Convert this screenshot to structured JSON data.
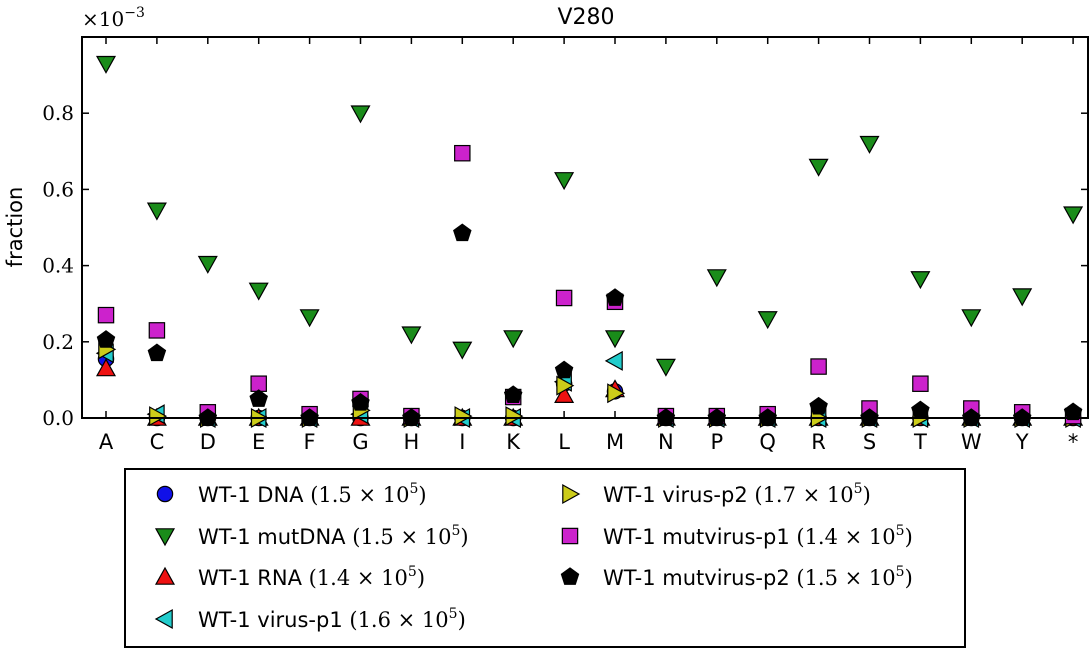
{
  "chart_data": {
    "type": "scatter",
    "title": "V280",
    "ylabel": "fraction",
    "y_scale_label": "×10",
    "y_scale_exp": "−3",
    "ylim": [
      0,
      1.0
    ],
    "yticks": [
      "0.0",
      "0.2",
      "0.4",
      "0.6",
      "0.8"
    ],
    "ytick_values": [
      0,
      0.2,
      0.4,
      0.6,
      0.8
    ],
    "categories": [
      "A",
      "C",
      "D",
      "E",
      "F",
      "G",
      "H",
      "I",
      "K",
      "L",
      "M",
      "N",
      "P",
      "Q",
      "R",
      "S",
      "T",
      "W",
      "Y",
      "*"
    ],
    "series": [
      {
        "name": "WT-1 DNA",
        "count": "(1.5 × 10",
        "exp": "5",
        "marker": "circle",
        "color": "#1010e8",
        "values": [
          0.155,
          0,
          0,
          0,
          0,
          0,
          0,
          0,
          0,
          0.09,
          0.07,
          0,
          0,
          0,
          0,
          0,
          0,
          0,
          0,
          0
        ]
      },
      {
        "name": "WT-1 mutDNA",
        "count": "(1.5 × 10",
        "exp": "5",
        "marker": "triangle-down",
        "color": "#1a8c1a",
        "values": [
          0.93,
          0.545,
          0.405,
          0.335,
          0.265,
          0.8,
          0.22,
          0.18,
          0.21,
          0.625,
          0.21,
          0.135,
          0.37,
          0.26,
          0.66,
          0.72,
          0.365,
          0.265,
          0.32,
          0.535
        ]
      },
      {
        "name": "WT-1 RNA",
        "count": "(1.4 × 10",
        "exp": "5",
        "marker": "triangle-up",
        "color": "#ee1111",
        "values": [
          0.13,
          0,
          0,
          0,
          0,
          0,
          0,
          0,
          0,
          0.06,
          0.075,
          0,
          0,
          0,
          0,
          0,
          0,
          0,
          0,
          0
        ]
      },
      {
        "name": "WT-1 virus-p1",
        "count": "(1.6 × 10",
        "exp": "5",
        "marker": "triangle-left",
        "color": "#22cccc",
        "values": [
          0.17,
          0.01,
          0,
          0,
          0,
          0.01,
          0,
          0,
          0,
          0.095,
          0.15,
          0,
          0,
          0,
          0,
          0,
          0,
          0,
          0,
          0
        ]
      },
      {
        "name": "WT-1 virus-p2",
        "count": "(1.7 × 10",
        "exp": "5",
        "marker": "triangle-right",
        "color": "#cccc1a",
        "values": [
          0.18,
          0.005,
          0,
          0,
          0,
          0.02,
          0,
          0.005,
          0.005,
          0.085,
          0.065,
          0,
          0,
          0,
          0,
          0,
          0,
          0,
          0,
          0
        ]
      },
      {
        "name": "WT-1 mutvirus-p1",
        "count": "(1.4 × 10",
        "exp": "5",
        "marker": "square",
        "color": "#cc22cc",
        "values": [
          0.27,
          0.23,
          0.015,
          0.09,
          0.01,
          0.05,
          0.005,
          0.695,
          0.055,
          0.315,
          0.305,
          0.005,
          0.005,
          0.01,
          0.135,
          0.025,
          0.09,
          0.025,
          0.015,
          0.005
        ]
      },
      {
        "name": "WT-1 mutvirus-p2",
        "count": "(1.5 × 10",
        "exp": "5",
        "marker": "pentagon",
        "color": "#000000",
        "values": [
          0.205,
          0.17,
          0,
          0.05,
          0,
          0.04,
          0,
          0.485,
          0.06,
          0.125,
          0.315,
          0,
          0,
          0,
          0.03,
          0,
          0.02,
          0,
          0,
          0.015
        ]
      }
    ],
    "legend_position": "bottom-center"
  }
}
